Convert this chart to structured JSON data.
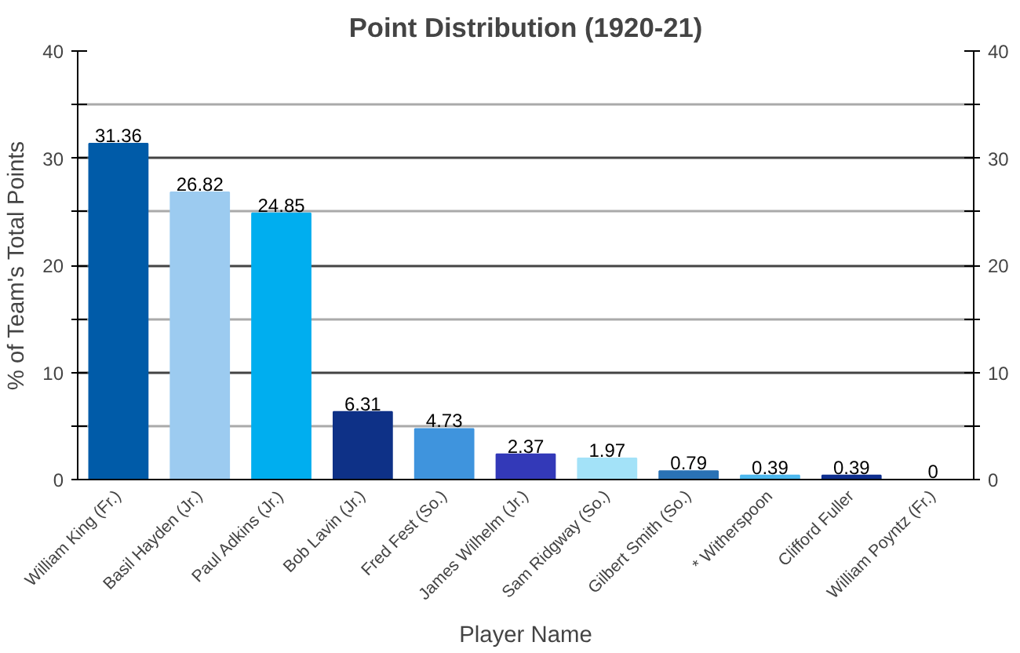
{
  "chart_data": {
    "type": "bar",
    "title": "Point Distribution (1920-21)",
    "xlabel": "Player Name",
    "ylabel": "% of Team's Total Points",
    "categories": [
      "William King (Fr.)",
      "Basil Hayden (Jr.)",
      "Paul Adkins (Jr.)",
      "Bob Lavin (Jr.)",
      "Fred Fest (So.)",
      "James Wilhelm (Jr.)",
      "Sam Ridgway (So.)",
      "Gilbert Smith (So.)",
      "* Witherspoon",
      "Clifford Fuller",
      "William Poyntz (Fr.)"
    ],
    "values": [
      31.36,
      26.82,
      24.85,
      6.31,
      4.73,
      2.37,
      1.97,
      0.79,
      0.39,
      0.39,
      0
    ],
    "colors": [
      "#005ba8",
      "#9ccbf0",
      "#00aeef",
      "#0e3187",
      "#3f94dd",
      "#3339b8",
      "#a3e2f8",
      "#2a72b5",
      "#4db8ee",
      "#0f2f8f",
      "#1a5aa8"
    ],
    "data_labels": true,
    "grid": "y",
    "ylim": [
      0,
      40
    ],
    "yticks": [
      0,
      {
        "value": 5,
        "label": null
      },
      10,
      {
        "value": 15,
        "label": null
      },
      20,
      {
        "value": 25,
        "label": null
      },
      30,
      {
        "value": 35,
        "label": null
      },
      40
    ],
    "y2lim": [
      0,
      40
    ],
    "y2ticks": [
      0,
      {
        "value": 5,
        "label": null
      },
      10,
      {
        "value": 15,
        "label": null
      },
      20,
      {
        "value": 25,
        "label": null
      },
      30,
      {
        "value": 35,
        "label": null
      },
      40
    ]
  }
}
